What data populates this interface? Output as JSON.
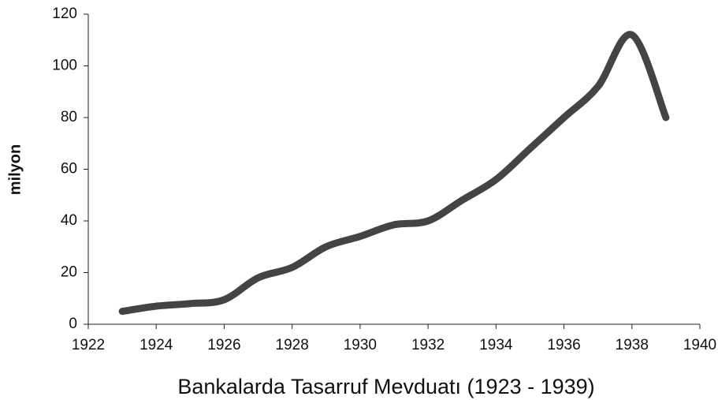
{
  "chart_data": {
    "type": "line",
    "title": "Bankalarda Tasarruf Mevduatı (1923 - 1939)",
    "y_label": "milyon",
    "x": [
      1923,
      1924,
      1925,
      1926,
      1927,
      1928,
      1929,
      1930,
      1931,
      1932,
      1933,
      1934,
      1935,
      1936,
      1937,
      1938,
      1939
    ],
    "series": [
      {
        "name": "milyon",
        "color": "#444444",
        "values": [
          5,
          7,
          8,
          9.5,
          18,
          22,
          30,
          34,
          38.5,
          40,
          48,
          56,
          68,
          80,
          92,
          112,
          80
        ]
      }
    ],
    "xlim": [
      1922,
      1940
    ],
    "xticks": [
      1922,
      1924,
      1926,
      1928,
      1930,
      1932,
      1934,
      1936,
      1938,
      1940
    ],
    "ylim": [
      0,
      120
    ],
    "yticks": [
      0,
      20,
      40,
      60,
      80,
      100,
      120
    ],
    "grid": false
  }
}
